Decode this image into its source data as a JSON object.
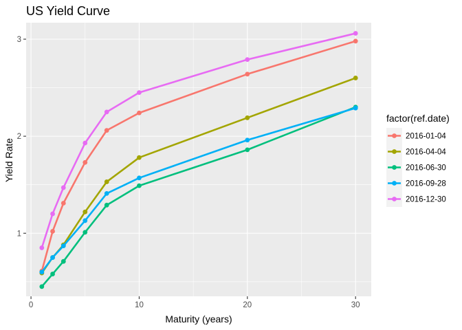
{
  "chart_data": {
    "type": "line",
    "title": "US Yield Curve",
    "xlabel": "Maturity (years)",
    "ylabel": "Yield Rate",
    "xlim": [
      -0.45,
      31.45
    ],
    "ylim": [
      0.35,
      3.17
    ],
    "x_ticks": [
      0,
      10,
      20,
      30
    ],
    "x_tick_labels": [
      "0",
      "10",
      "20",
      "30"
    ],
    "y_ticks": [
      1,
      2,
      3
    ],
    "y_tick_labels": [
      "1",
      "2",
      "3"
    ],
    "grid": true,
    "legend": {
      "title": "factor(ref.date)",
      "position": "right"
    },
    "x": [
      1,
      2,
      3,
      5,
      7,
      10,
      20,
      30
    ],
    "series": [
      {
        "name": "2016-01-04",
        "color": "#F8766D",
        "values": [
          0.61,
          1.02,
          1.31,
          1.73,
          2.06,
          2.24,
          2.64,
          2.98
        ]
      },
      {
        "name": "2016-04-04",
        "color": "#A3A500",
        "values": [
          0.59,
          0.75,
          0.88,
          1.22,
          1.53,
          1.78,
          2.19,
          2.6
        ]
      },
      {
        "name": "2016-06-30",
        "color": "#00BF7D",
        "values": [
          0.45,
          0.58,
          0.71,
          1.01,
          1.29,
          1.49,
          1.86,
          2.3
        ]
      },
      {
        "name": "2016-09-28",
        "color": "#00B0F6",
        "values": [
          0.6,
          0.75,
          0.87,
          1.13,
          1.41,
          1.57,
          1.96,
          2.29
        ]
      },
      {
        "name": "2016-12-30",
        "color": "#E76BF3",
        "values": [
          0.85,
          1.2,
          1.47,
          1.93,
          2.25,
          2.45,
          2.79,
          3.06
        ]
      }
    ],
    "panel_background": "#EBEBEB",
    "grid_color": "#FFFFFF"
  }
}
